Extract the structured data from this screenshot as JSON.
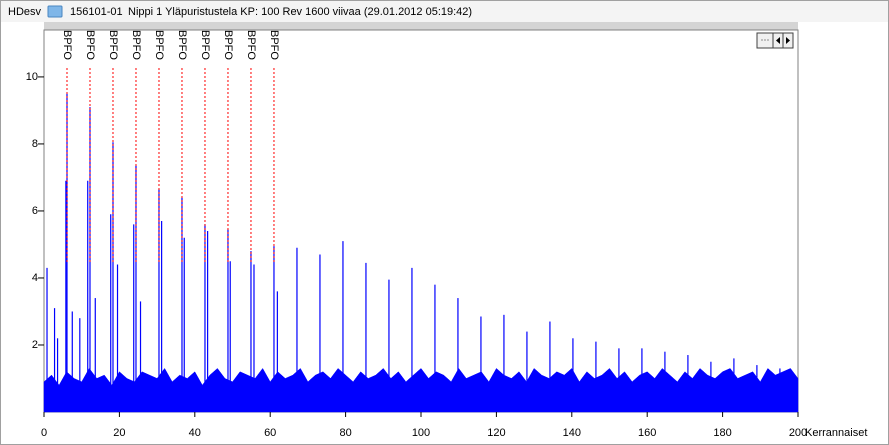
{
  "window": {
    "app": "HDesv",
    "id": "156101-01",
    "title": "Nippi 1 Yläpuristustela KP: 100 Rev 1600 viivaa (29.01.2012 05:19:42)"
  },
  "chart_data": {
    "type": "spectrum",
    "xlabel": "Kerrannaiset",
    "xlim": [
      0,
      200
    ],
    "xticks": [
      0,
      20,
      40,
      60,
      80,
      100,
      120,
      140,
      160,
      180,
      200
    ],
    "ylim": [
      0,
      11.4
    ],
    "yticks": [
      2,
      4,
      6,
      8,
      10
    ],
    "color": "#0000ff",
    "markers": {
      "label": "BPFO",
      "color": "#ff0000",
      "x": [
        6.1,
        12.2,
        18.3,
        24.4,
        30.5,
        36.6,
        42.7,
        48.8,
        54.9,
        61.0
      ]
    },
    "series": [
      {
        "style": "area",
        "x": [
          0,
          2,
          4,
          6,
          8,
          10,
          12,
          14,
          16,
          18,
          20,
          22,
          24,
          26,
          28,
          30,
          32,
          34,
          36,
          38,
          40,
          42,
          44,
          46,
          48,
          50,
          52,
          54,
          56,
          58,
          60,
          62,
          64,
          66,
          68,
          70,
          72,
          74,
          76,
          78,
          80,
          82,
          84,
          86,
          88,
          90,
          92,
          94,
          96,
          98,
          100,
          102,
          104,
          106,
          108,
          110,
          112,
          114,
          116,
          118,
          120,
          122,
          124,
          126,
          128,
          130,
          132,
          134,
          136,
          138,
          140,
          142,
          144,
          146,
          148,
          150,
          152,
          154,
          156,
          158,
          160,
          162,
          164,
          166,
          168,
          170,
          172,
          174,
          176,
          178,
          180,
          182,
          184,
          186,
          188,
          190,
          192,
          194,
          196,
          198,
          200
        ],
        "values": [
          0.9,
          1.1,
          0.8,
          1.2,
          1.0,
          0.9,
          1.3,
          1.0,
          1.1,
          0.8,
          1.2,
          1.0,
          0.9,
          1.2,
          1.1,
          1.0,
          1.3,
          0.9,
          1.1,
          1.0,
          1.2,
          0.8,
          1.1,
          1.3,
          1.0,
          0.9,
          1.2,
          1.1,
          1.0,
          1.3,
          0.9,
          1.2,
          1.0,
          1.1,
          1.3,
          0.9,
          1.1,
          1.2,
          1.0,
          1.3,
          1.1,
          0.9,
          1.2,
          1.0,
          1.1,
          1.3,
          1.0,
          1.2,
          0.9,
          1.1,
          1.3,
          1.0,
          1.2,
          1.1,
          0.9,
          1.3,
          1.0,
          1.1,
          1.2,
          0.9,
          1.3,
          1.1,
          1.0,
          1.2,
          0.9,
          1.3,
          1.1,
          1.0,
          1.2,
          1.1,
          1.3,
          0.9,
          1.2,
          1.0,
          1.1,
          1.3,
          1.0,
          1.2,
          0.9,
          1.1,
          1.2,
          1.0,
          1.3,
          1.1,
          0.9,
          1.2,
          1.0,
          1.3,
          1.1,
          1.0,
          1.2,
          1.3,
          1.0,
          1.1,
          1.2,
          0.9,
          1.3,
          1.1,
          1.2,
          1.3,
          1.0
        ]
      },
      {
        "style": "stem",
        "x": [
          0.8,
          2.8,
          3.6,
          5.8,
          6.1,
          7.5,
          9.5,
          11.6,
          12.2,
          13.6,
          17.7,
          18.3,
          19.5,
          23.8,
          24.4,
          25.6,
          30.5,
          31.2,
          36.6,
          37.2,
          42.7,
          43.4,
          48.8,
          49.4,
          54.9,
          55.7,
          61.0,
          61.9,
          67.1,
          73.2,
          79.3,
          85.4,
          91.5,
          97.6,
          103.7,
          109.8,
          115.9,
          122.0,
          128.1,
          134.2,
          140.3,
          146.4,
          152.5,
          158.6,
          164.7,
          170.8,
          176.9,
          183.0,
          189.1,
          195.2
        ],
        "values": [
          4.3,
          3.1,
          2.2,
          6.9,
          9.5,
          3.0,
          2.8,
          6.9,
          9.1,
          3.4,
          5.9,
          8.05,
          4.4,
          5.6,
          7.35,
          3.3,
          6.65,
          5.7,
          6.4,
          5.2,
          5.6,
          5.4,
          5.45,
          4.5,
          4.8,
          4.4,
          4.95,
          3.6,
          4.9,
          4.7,
          5.1,
          4.45,
          3.95,
          4.3,
          3.8,
          3.4,
          2.85,
          2.9,
          2.4,
          2.7,
          2.2,
          2.1,
          1.9,
          1.9,
          1.8,
          1.7,
          1.5,
          1.6,
          1.4,
          1.3
        ]
      }
    ]
  }
}
